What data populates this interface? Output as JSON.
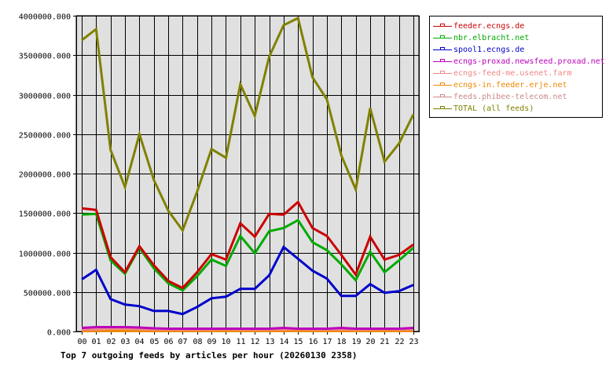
{
  "chart_data": {
    "type": "line",
    "title": "Top 7 outgoing feeds by articles per hour (20260130 2358)",
    "xlabel": "",
    "ylabel": "",
    "ylim": [
      0,
      4000000
    ],
    "yticks": [
      "0.000",
      "500000.000",
      "1000000.000",
      "1500000.000",
      "2000000.000",
      "2500000.000",
      "3000000.000",
      "3500000.000",
      "4000000.000"
    ],
    "grid": true,
    "legend_position": "right",
    "categories": [
      "00",
      "01",
      "02",
      "03",
      "04",
      "05",
      "06",
      "07",
      "08",
      "09",
      "10",
      "11",
      "12",
      "13",
      "14",
      "15",
      "16",
      "17",
      "18",
      "19",
      "20",
      "21",
      "22",
      "23"
    ],
    "series": [
      {
        "name": "feeder.ecngs.de",
        "color": "#CC0000",
        "values": [
          1560000,
          1540000,
          940000,
          750000,
          1080000,
          840000,
          640000,
          550000,
          750000,
          980000,
          910000,
          1370000,
          1200000,
          1490000,
          1480000,
          1640000,
          1310000,
          1210000,
          970000,
          720000,
          1200000,
          910000,
          970000,
          1100000
        ]
      },
      {
        "name": "nbr.elbracht.net",
        "color": "#00AA00",
        "values": [
          1480000,
          1490000,
          900000,
          730000,
          1060000,
          800000,
          610000,
          520000,
          700000,
          910000,
          830000,
          1210000,
          990000,
          1270000,
          1310000,
          1410000,
          1130000,
          1030000,
          850000,
          650000,
          1010000,
          750000,
          900000,
          1060000
        ]
      },
      {
        "name": "spool1.ecngs.de",
        "color": "#0000CC",
        "values": [
          660000,
          780000,
          410000,
          340000,
          320000,
          260000,
          260000,
          220000,
          310000,
          420000,
          440000,
          540000,
          540000,
          710000,
          1070000,
          920000,
          770000,
          670000,
          450000,
          450000,
          600000,
          490000,
          510000,
          590000
        ]
      },
      {
        "name": "ecngs-proxad.newsfeed.proxad.net",
        "color": "#BB00BB",
        "values": [
          45000,
          55000,
          55000,
          55000,
          50000,
          40000,
          35000,
          35000,
          35000,
          35000,
          35000,
          35000,
          35000,
          35000,
          45000,
          35000,
          35000,
          35000,
          45000,
          35000,
          35000,
          35000,
          35000,
          45000
        ]
      },
      {
        "name": "ecngs-feed-me.usenet.farm",
        "color": "#EE8888",
        "values": [
          25000,
          25000,
          35000,
          35000,
          30000,
          25000,
          25000,
          25000,
          25000,
          25000,
          30000,
          25000,
          25000,
          25000,
          25000,
          30000,
          25000,
          25000,
          25000,
          25000,
          25000,
          30000,
          25000,
          25000
        ]
      },
      {
        "name": "ecngs-in.feeder.erje.net",
        "color": "#EE8800",
        "values": [
          5000,
          5000,
          5000,
          5000,
          5000,
          5000,
          5000,
          5000,
          5000,
          5000,
          5000,
          5000,
          5000,
          5000,
          5000,
          5000,
          5000,
          5000,
          5000,
          5000,
          5000,
          5000,
          5000,
          5000
        ]
      },
      {
        "name": "feeds.phibee-telecom.net",
        "color": "#CC8888",
        "values": [
          20000,
          20000,
          20000,
          20000,
          20000,
          20000,
          20000,
          20000,
          20000,
          20000,
          20000,
          20000,
          20000,
          20000,
          20000,
          20000,
          20000,
          20000,
          20000,
          20000,
          20000,
          20000,
          20000,
          20000
        ]
      },
      {
        "name": "TOTAL (all feeds)",
        "color": "#808000",
        "values": [
          3690000,
          3830000,
          2300000,
          1830000,
          2500000,
          1920000,
          1530000,
          1280000,
          1770000,
          2310000,
          2200000,
          3130000,
          2730000,
          3480000,
          3880000,
          3970000,
          3220000,
          2940000,
          2230000,
          1800000,
          2830000,
          2150000,
          2380000,
          2750000
        ]
      }
    ]
  }
}
